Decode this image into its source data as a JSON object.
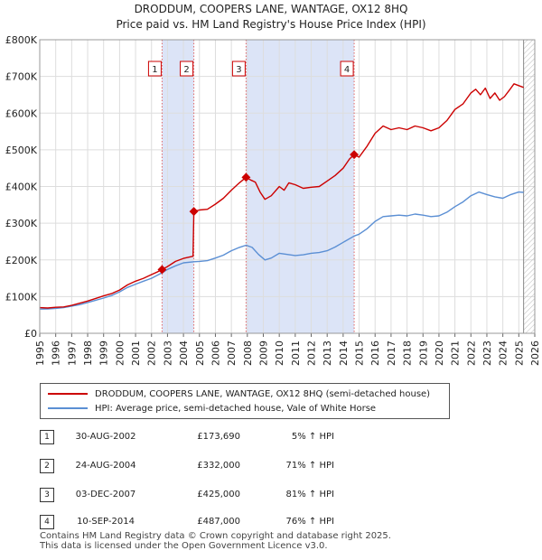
{
  "title": "DRODDUM, COOPERS LANE, WANTAGE, OX12 8HQ",
  "subtitle": "Price paid vs. HM Land Registry's House Price Index (HPI)",
  "colors": {
    "property": "#cc0000",
    "hpi": "#5b8fd4",
    "band": "#dce4f7",
    "grid": "#dddddd",
    "marker_line": "#e06666"
  },
  "chart_data": {
    "type": "line",
    "title": "DRODDUM, COOPERS LANE, WANTAGE, OX12 8HQ",
    "subtitle": "Price paid vs. HM Land Registry's House Price Index (HPI)",
    "xlim": [
      1995,
      2026
    ],
    "ylim": [
      0,
      800000
    ],
    "y_ticks": [
      {
        "value": 0,
        "label": "£0"
      },
      {
        "value": 100000,
        "label": "£100K"
      },
      {
        "value": 200000,
        "label": "£200K"
      },
      {
        "value": 300000,
        "label": "£300K"
      },
      {
        "value": 400000,
        "label": "£400K"
      },
      {
        "value": 500000,
        "label": "£500K"
      },
      {
        "value": 600000,
        "label": "£600K"
      },
      {
        "value": 700000,
        "label": "£700K"
      },
      {
        "value": 800000,
        "label": "£800K"
      }
    ],
    "x_ticks": [
      "1995",
      "1996",
      "1997",
      "1998",
      "1999",
      "2000",
      "2001",
      "2002",
      "2003",
      "2004",
      "2005",
      "2006",
      "2007",
      "2008",
      "2009",
      "2010",
      "2011",
      "2012",
      "2013",
      "2014",
      "2015",
      "2016",
      "2017",
      "2018",
      "2019",
      "2020",
      "2021",
      "2022",
      "2023",
      "2024",
      "2025",
      "2026"
    ],
    "shaded_ranges": [
      [
        2002.66,
        2004.65
      ],
      [
        2007.92,
        2014.69
      ]
    ],
    "future_from": 2025.3,
    "series": [
      {
        "name": "DRODDUM, COOPERS LANE, WANTAGE, OX12 8HQ (semi-detached house)",
        "color": "#cc0000",
        "points": [
          [
            1995,
            70000
          ],
          [
            1995.5,
            69000
          ],
          [
            1996,
            71000
          ],
          [
            1996.5,
            72000
          ],
          [
            1997,
            76000
          ],
          [
            1997.5,
            82000
          ],
          [
            1998,
            88000
          ],
          [
            1998.5,
            95000
          ],
          [
            1999,
            102000
          ],
          [
            1999.5,
            108000
          ],
          [
            2000,
            118000
          ],
          [
            2000.5,
            132000
          ],
          [
            2001,
            142000
          ],
          [
            2001.5,
            150000
          ],
          [
            2002,
            160000
          ],
          [
            2002.4,
            168000
          ],
          [
            2002.66,
            173690
          ],
          [
            2003,
            182000
          ],
          [
            2003.5,
            196000
          ],
          [
            2004,
            204000
          ],
          [
            2004.6,
            210000
          ],
          [
            2004.65,
            332000
          ],
          [
            2005,
            336000
          ],
          [
            2005.5,
            338000
          ],
          [
            2006,
            352000
          ],
          [
            2006.5,
            368000
          ],
          [
            2007,
            390000
          ],
          [
            2007.5,
            410000
          ],
          [
            2007.92,
            425000
          ],
          [
            2008.2,
            418000
          ],
          [
            2008.5,
            412000
          ],
          [
            2008.8,
            385000
          ],
          [
            2009.1,
            365000
          ],
          [
            2009.5,
            375000
          ],
          [
            2010,
            400000
          ],
          [
            2010.3,
            390000
          ],
          [
            2010.6,
            410000
          ],
          [
            2011,
            405000
          ],
          [
            2011.5,
            395000
          ],
          [
            2012,
            398000
          ],
          [
            2012.5,
            400000
          ],
          [
            2013,
            415000
          ],
          [
            2013.5,
            430000
          ],
          [
            2014,
            450000
          ],
          [
            2014.4,
            475000
          ],
          [
            2014.69,
            487000
          ],
          [
            2015,
            480000
          ],
          [
            2015.5,
            510000
          ],
          [
            2016,
            545000
          ],
          [
            2016.5,
            565000
          ],
          [
            2017,
            555000
          ],
          [
            2017.5,
            560000
          ],
          [
            2018,
            555000
          ],
          [
            2018.5,
            565000
          ],
          [
            2019,
            560000
          ],
          [
            2019.5,
            552000
          ],
          [
            2020,
            560000
          ],
          [
            2020.5,
            580000
          ],
          [
            2021,
            610000
          ],
          [
            2021.5,
            625000
          ],
          [
            2022,
            655000
          ],
          [
            2022.3,
            665000
          ],
          [
            2022.6,
            650000
          ],
          [
            2022.9,
            668000
          ],
          [
            2023.2,
            640000
          ],
          [
            2023.5,
            655000
          ],
          [
            2023.8,
            635000
          ],
          [
            2024.1,
            645000
          ],
          [
            2024.4,
            662000
          ],
          [
            2024.7,
            680000
          ],
          [
            2025,
            675000
          ],
          [
            2025.3,
            670000
          ]
        ]
      },
      {
        "name": "HPI: Average price, semi-detached house, Vale of White Horse",
        "color": "#5b8fd4",
        "points": [
          [
            1995,
            66000
          ],
          [
            1995.5,
            66500
          ],
          [
            1996,
            68000
          ],
          [
            1996.5,
            70000
          ],
          [
            1997,
            74000
          ],
          [
            1997.5,
            78000
          ],
          [
            1998,
            84000
          ],
          [
            1998.5,
            90000
          ],
          [
            1999,
            96000
          ],
          [
            1999.5,
            103000
          ],
          [
            2000,
            113000
          ],
          [
            2000.5,
            125000
          ],
          [
            2001,
            134000
          ],
          [
            2001.5,
            142000
          ],
          [
            2002,
            150000
          ],
          [
            2002.66,
            165000
          ],
          [
            2003,
            174000
          ],
          [
            2003.5,
            184000
          ],
          [
            2004,
            192000
          ],
          [
            2004.65,
            195000
          ],
          [
            2005,
            196000
          ],
          [
            2005.5,
            198000
          ],
          [
            2006,
            205000
          ],
          [
            2006.5,
            213000
          ],
          [
            2007,
            225000
          ],
          [
            2007.5,
            234000
          ],
          [
            2007.92,
            240000
          ],
          [
            2008.3,
            234000
          ],
          [
            2008.7,
            215000
          ],
          [
            2009.1,
            200000
          ],
          [
            2009.5,
            205000
          ],
          [
            2010,
            218000
          ],
          [
            2010.5,
            215000
          ],
          [
            2011,
            212000
          ],
          [
            2011.5,
            214000
          ],
          [
            2012,
            218000
          ],
          [
            2012.5,
            220000
          ],
          [
            2013,
            225000
          ],
          [
            2013.5,
            235000
          ],
          [
            2014,
            248000
          ],
          [
            2014.69,
            265000
          ],
          [
            2015,
            270000
          ],
          [
            2015.5,
            285000
          ],
          [
            2016,
            305000
          ],
          [
            2016.5,
            318000
          ],
          [
            2017,
            320000
          ],
          [
            2017.5,
            322000
          ],
          [
            2018,
            320000
          ],
          [
            2018.5,
            325000
          ],
          [
            2019,
            322000
          ],
          [
            2019.5,
            318000
          ],
          [
            2020,
            320000
          ],
          [
            2020.5,
            330000
          ],
          [
            2021,
            345000
          ],
          [
            2021.5,
            358000
          ],
          [
            2022,
            375000
          ],
          [
            2022.5,
            385000
          ],
          [
            2023,
            378000
          ],
          [
            2023.5,
            372000
          ],
          [
            2024,
            368000
          ],
          [
            2024.5,
            378000
          ],
          [
            2025,
            385000
          ],
          [
            2025.3,
            384000
          ]
        ]
      }
    ],
    "sales": [
      {
        "label": "1",
        "x": 2002.66,
        "y": 173690
      },
      {
        "label": "2",
        "x": 2004.65,
        "y": 332000
      },
      {
        "label": "3",
        "x": 2007.92,
        "y": 425000
      },
      {
        "label": "4",
        "x": 2014.69,
        "y": 487000
      }
    ]
  },
  "legend": {
    "property_label": "DRODDUM, COOPERS LANE, WANTAGE, OX12 8HQ (semi-detached house)",
    "hpi_label": "HPI: Average price, semi-detached house, Vale of White Horse"
  },
  "transactions": [
    {
      "num": "1",
      "date": "30-AUG-2002",
      "price": "£173,690",
      "hpi": "5% ↑ HPI"
    },
    {
      "num": "2",
      "date": "24-AUG-2004",
      "price": "£332,000",
      "hpi": "71% ↑ HPI"
    },
    {
      "num": "3",
      "date": "03-DEC-2007",
      "price": "£425,000",
      "hpi": "81% ↑ HPI"
    },
    {
      "num": "4",
      "date": "10-SEP-2014",
      "price": "£487,000",
      "hpi": "76% ↑ HPI"
    }
  ],
  "footer": {
    "line1": "Contains HM Land Registry data © Crown copyright and database right 2025.",
    "line2": "This data is licensed under the Open Government Licence v3.0."
  }
}
